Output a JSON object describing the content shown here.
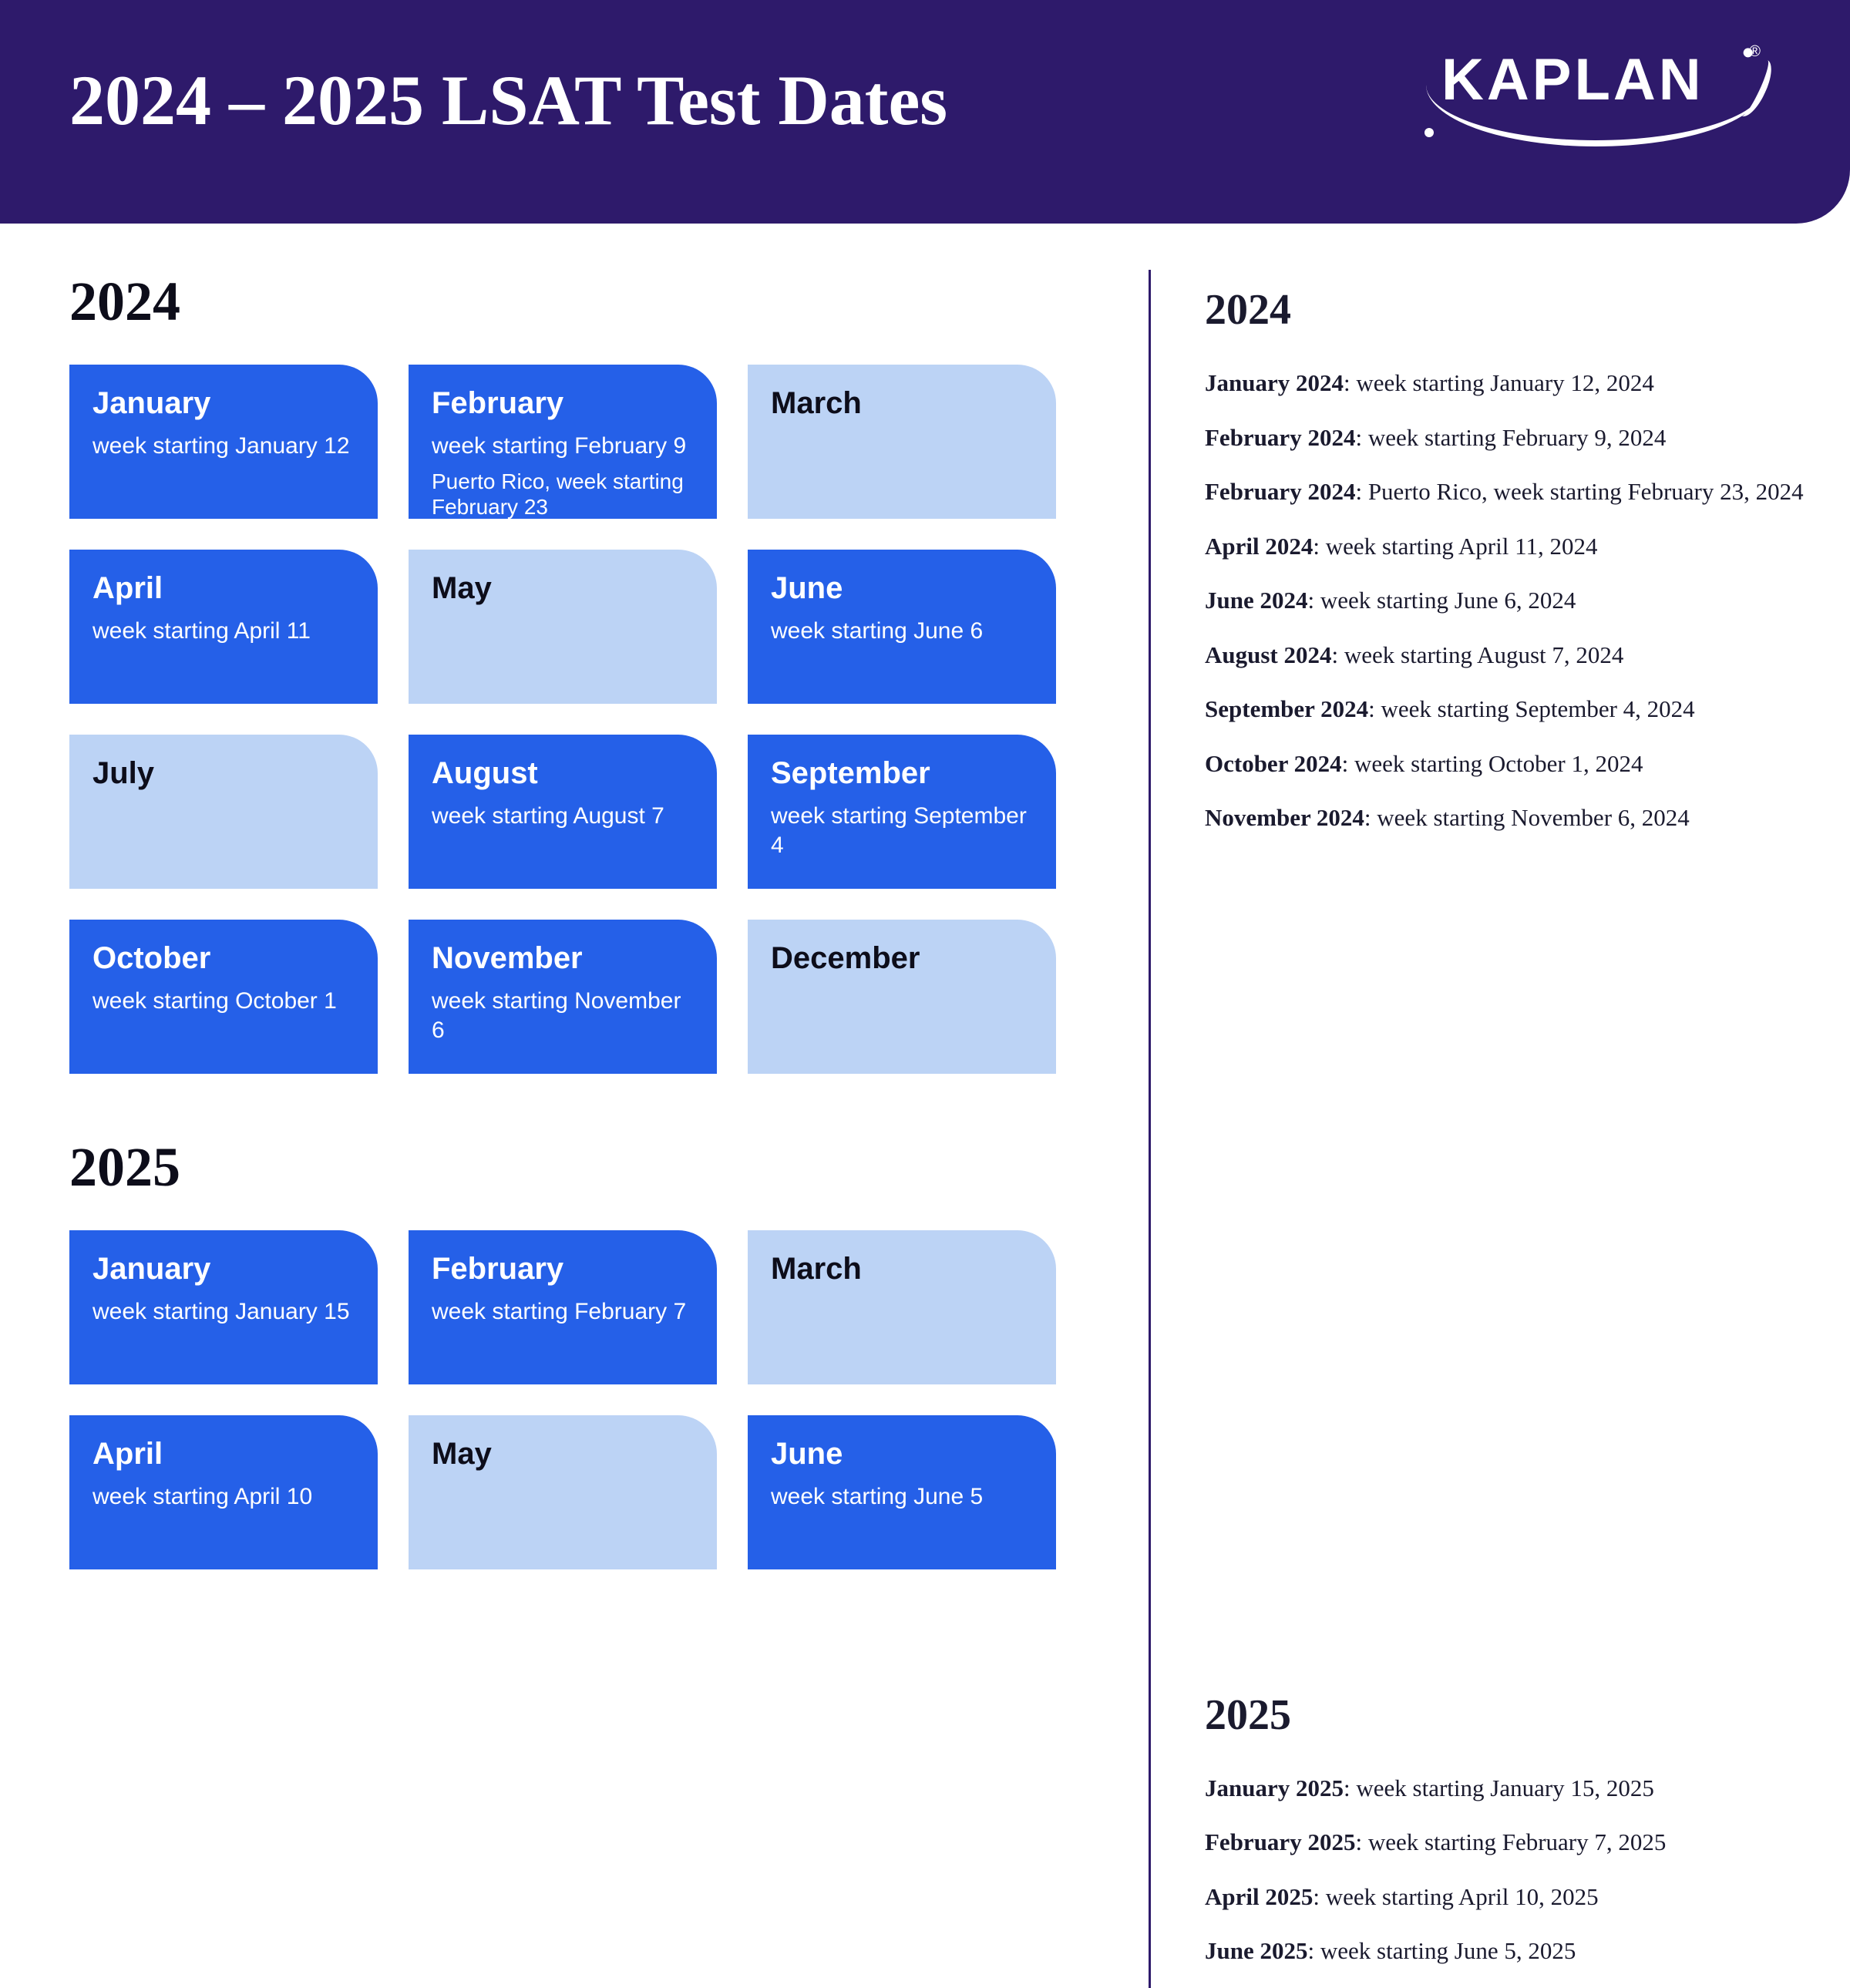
{
  "header": {
    "title": "2024 – 2025 LSAT Test Dates",
    "brand": "KAPLAN"
  },
  "colors": {
    "header_bg": "#2e1a6b",
    "card_active_bg": "#2560e8",
    "card_inactive_bg": "#bcd3f5",
    "text_dark": "#0d0d1a",
    "text_light": "#ffffff",
    "divider": "#2e1a6b"
  },
  "left": {
    "year1": "2024",
    "grid1": [
      {
        "month": "January",
        "active": true,
        "line1": "week starting January 12"
      },
      {
        "month": "February",
        "active": true,
        "line1": "week starting February 9",
        "line2": "Puerto Rico, week starting February 23"
      },
      {
        "month": "March",
        "active": false
      },
      {
        "month": "April",
        "active": true,
        "line1": "week starting April 11"
      },
      {
        "month": "May",
        "active": false
      },
      {
        "month": "June",
        "active": true,
        "line1": "week starting June 6"
      },
      {
        "month": "July",
        "active": false
      },
      {
        "month": "August",
        "active": true,
        "line1": "week starting August 7"
      },
      {
        "month": "September",
        "active": true,
        "line1": "week starting September 4"
      },
      {
        "month": "October",
        "active": true,
        "line1": "week starting October 1"
      },
      {
        "month": "November",
        "active": true,
        "line1": "week starting November 6"
      },
      {
        "month": "December",
        "active": false
      }
    ],
    "year2": "2025",
    "grid2": [
      {
        "month": "January",
        "active": true,
        "line1": "week starting January 15"
      },
      {
        "month": "February",
        "active": true,
        "line1": "week starting February 7"
      },
      {
        "month": "March",
        "active": false
      },
      {
        "month": "April",
        "active": true,
        "line1": "week starting April 10"
      },
      {
        "month": "May",
        "active": false
      },
      {
        "month": "June",
        "active": true,
        "line1": "week starting June 5"
      }
    ]
  },
  "right": {
    "year1": "2024",
    "list1": [
      {
        "label": "January 2024",
        "detail": ": week starting January 12, 2024"
      },
      {
        "label": "February 2024",
        "detail": ": week starting February 9, 2024"
      },
      {
        "label": "February 2024",
        "detail": ": Puerto Rico, week starting February 23, 2024"
      },
      {
        "label": "April 2024",
        "detail": ": week starting April 11, 2024"
      },
      {
        "label": "June 2024",
        "detail": ": week starting June 6, 2024"
      },
      {
        "label": "August 2024",
        "detail": ": week starting August 7, 2024"
      },
      {
        "label": "September 2024",
        "detail": ": week starting September 4, 2024"
      },
      {
        "label": "October 2024",
        "detail": ": week starting October 1, 2024"
      },
      {
        "label": "November 2024",
        "detail": ": week starting November 6, 2024"
      }
    ],
    "year2": "2025",
    "list2": [
      {
        "label": "January 2025",
        "detail": ": week starting January 15, 2025"
      },
      {
        "label": "February 2025",
        "detail": ": week starting February 7, 2025"
      },
      {
        "label": "April 2025",
        "detail": ": week starting April 10, 2025"
      },
      {
        "label": "June 2025",
        "detail": ": week starting June 5, 2025"
      }
    ]
  }
}
